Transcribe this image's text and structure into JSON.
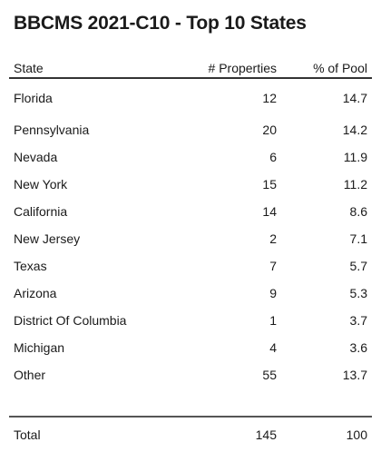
{
  "chart_data": {
    "type": "table",
    "title": "BBCMS 2021-C10 - Top 10 States",
    "columns": [
      "State",
      "# Properties",
      "% of Pool"
    ],
    "rows": [
      [
        "Florida",
        "12",
        "14.7"
      ],
      [
        "Pennsylvania",
        "20",
        "14.2"
      ],
      [
        "Nevada",
        "6",
        "11.9"
      ],
      [
        "New York",
        "15",
        "11.2"
      ],
      [
        "California",
        "14",
        "8.6"
      ],
      [
        "New Jersey",
        "2",
        "7.1"
      ],
      [
        "Texas",
        "7",
        "5.7"
      ],
      [
        "Arizona",
        "9",
        "5.3"
      ],
      [
        "District Of Columbia",
        "1",
        "3.7"
      ],
      [
        "Michigan",
        "4",
        "3.6"
      ],
      [
        "Other",
        "55",
        "13.7"
      ]
    ],
    "total": [
      "Total",
      "145",
      "100"
    ]
  }
}
